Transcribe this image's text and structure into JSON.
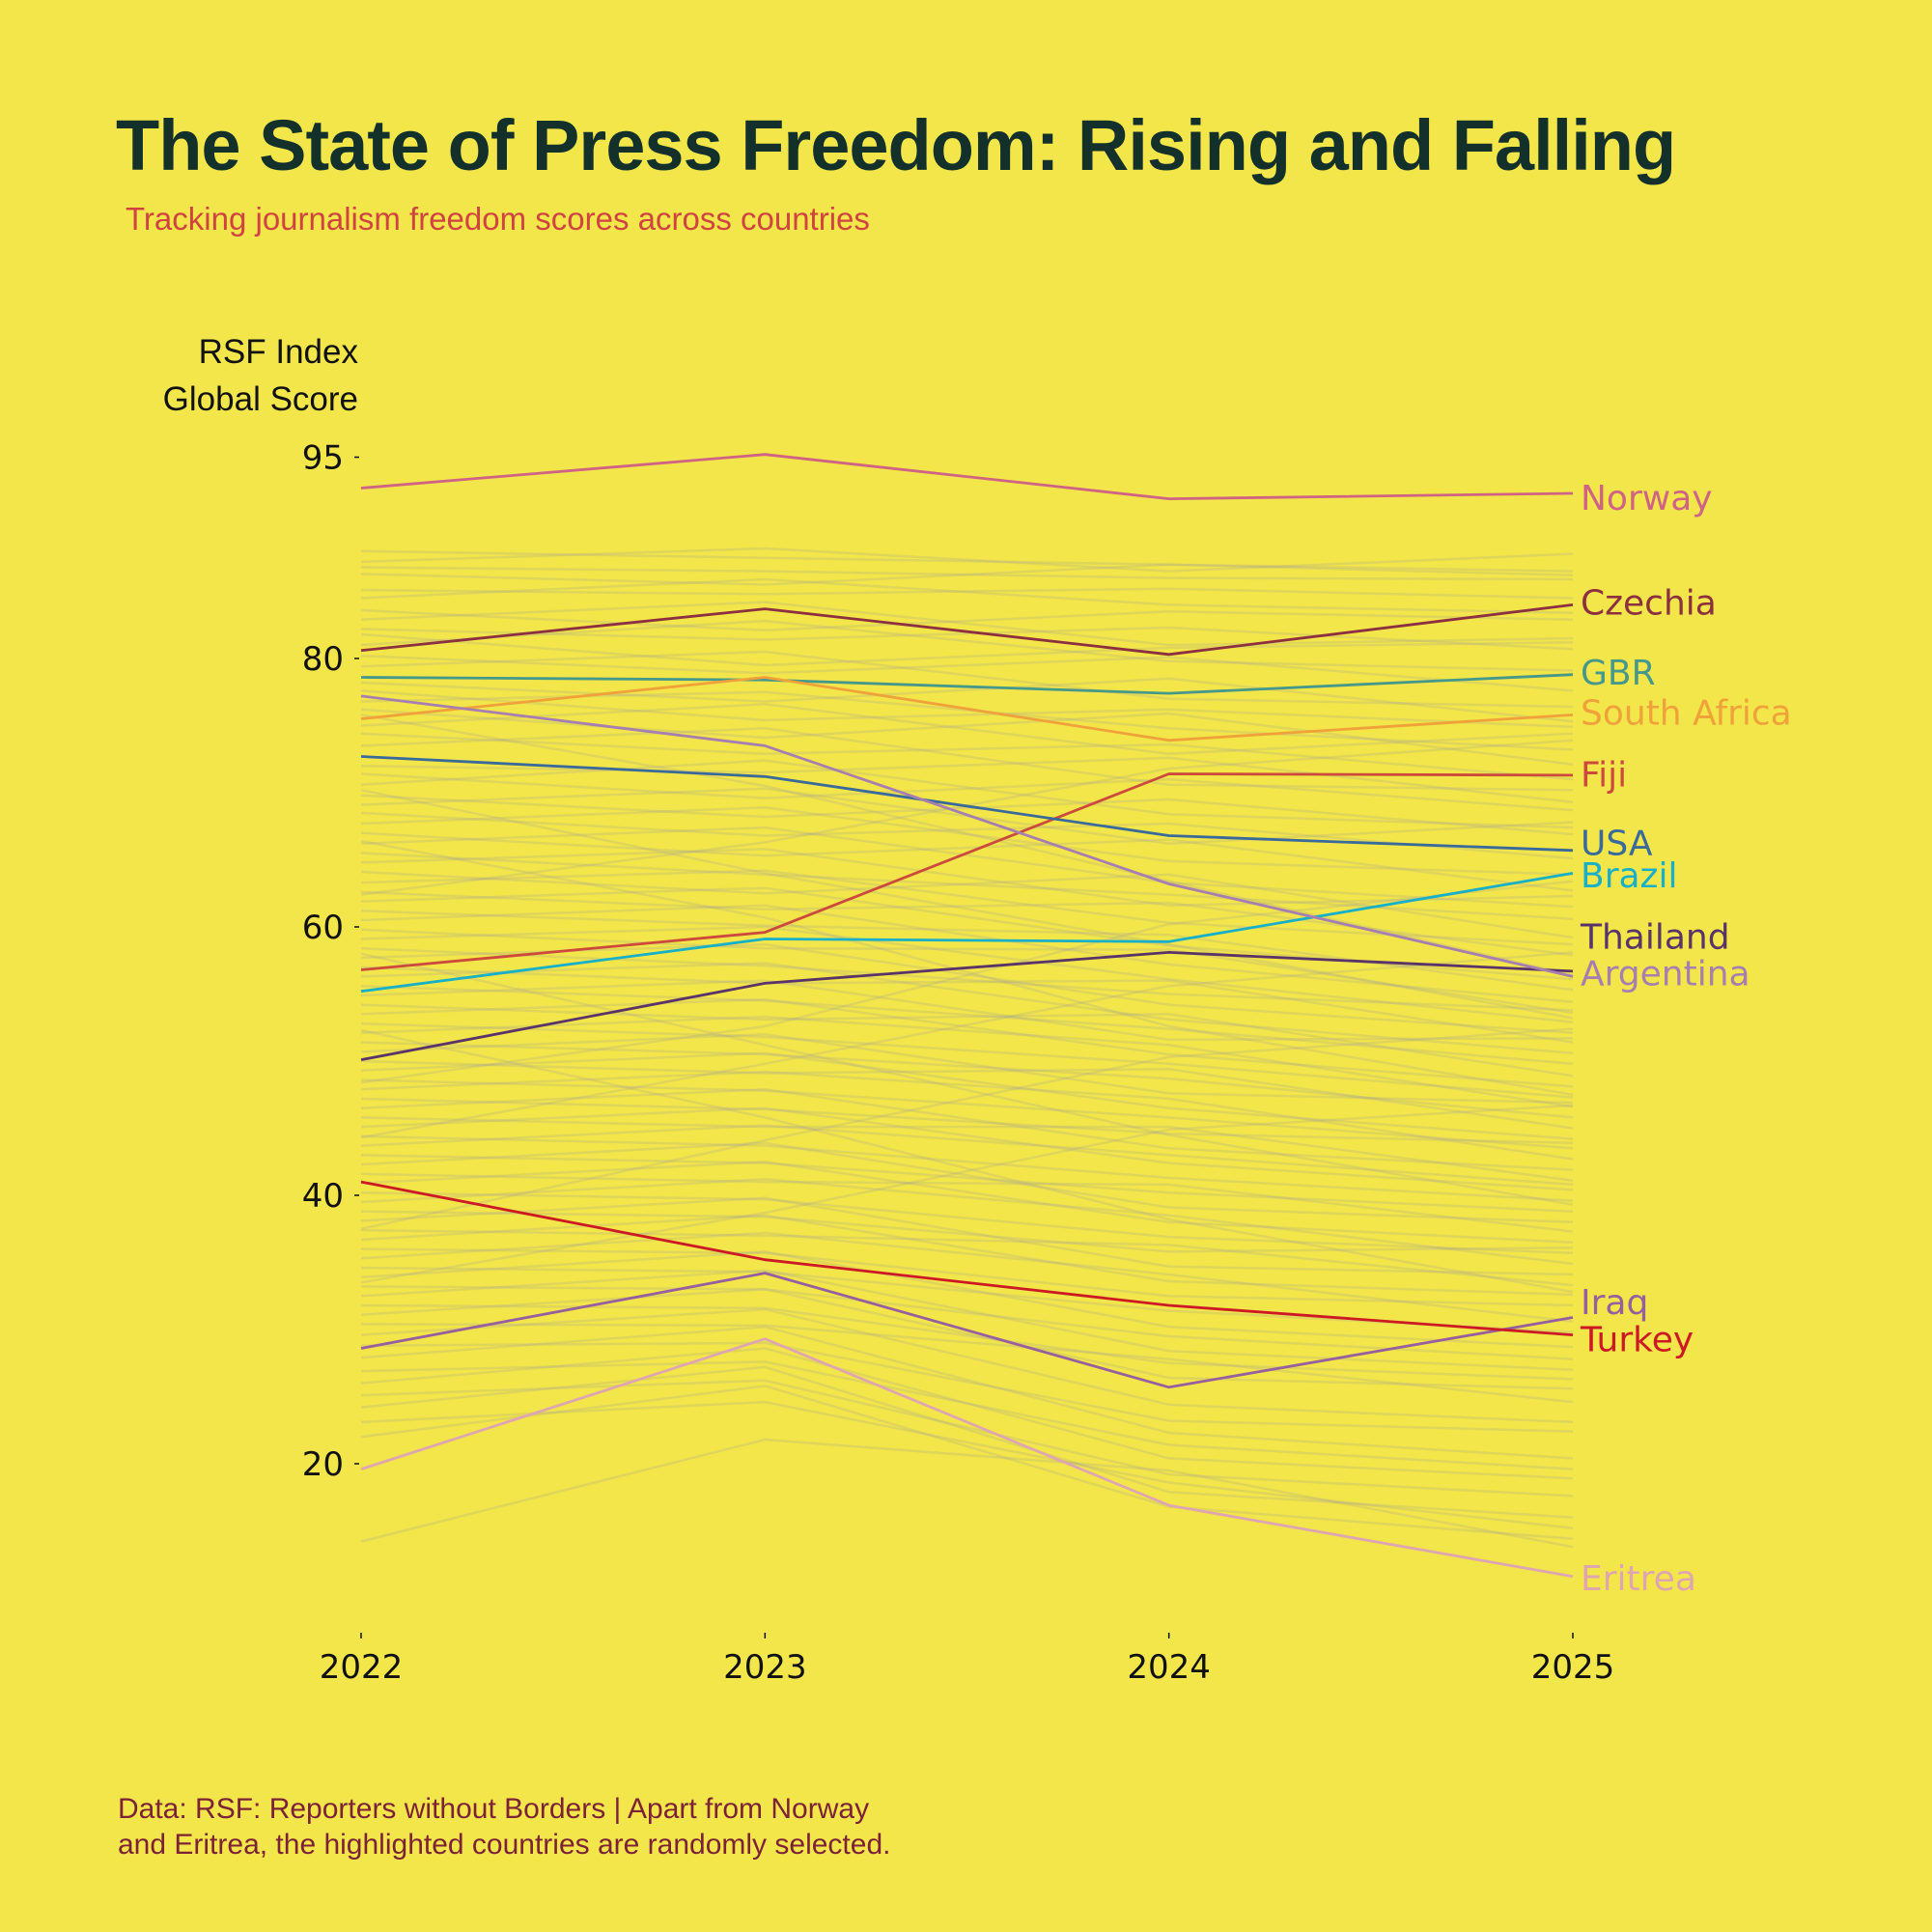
{
  "title": "The State of Press Freedom: Rising and Falling",
  "subtitle": "Tracking journalism freedom scores across countries",
  "caption_line1": "Data: RSF: Reporters without Borders | Apart from Norway",
  "caption_line2": "and Eritrea, the highlighted countries are randomly selected.",
  "colors": {
    "background": "#f3e64a",
    "title": "#14302b",
    "subtitle": "#cf4440",
    "caption": "#7c2237",
    "background_lines": "#9a9a9a"
  },
  "chart_data": {
    "type": "line",
    "title": "The State of Press Freedom: Rising and Falling",
    "ylabel_line1": "RSF Index",
    "ylabel_line2": "Global Score",
    "xlabel": "",
    "x": [
      "2022",
      "2023",
      "2024",
      "2025"
    ],
    "yticks": [
      20,
      40,
      60,
      80,
      95
    ],
    "ylim": [
      10,
      96
    ],
    "grid": false,
    "legend": "direct labels at right end of lines",
    "series": [
      {
        "name": "Norway",
        "color": "#cf6384",
        "values": [
          92.7,
          95.2,
          91.9,
          92.3
        ]
      },
      {
        "name": "Czechia",
        "color": "#8c3040",
        "values": [
          80.6,
          83.7,
          80.3,
          84.0
        ]
      },
      {
        "name": "GBR",
        "color": "#46998a",
        "values": [
          78.6,
          78.4,
          77.4,
          78.8
        ]
      },
      {
        "name": "South Africa",
        "color": "#f0a23a",
        "values": [
          75.5,
          78.6,
          73.9,
          75.8
        ]
      },
      {
        "name": "Fiji",
        "color": "#cc4a3c",
        "values": [
          56.8,
          59.6,
          71.4,
          71.3
        ]
      },
      {
        "name": "USA",
        "color": "#3a6a9a",
        "values": [
          72.7,
          71.2,
          66.8,
          65.7
        ]
      },
      {
        "name": "Brazil",
        "color": "#18b0c8",
        "values": [
          55.2,
          59.1,
          58.9,
          64.0
        ]
      },
      {
        "name": "Thailand",
        "color": "#5a3468",
        "values": [
          50.1,
          55.8,
          58.1,
          56.7
        ]
      },
      {
        "name": "Argentina",
        "color": "#a67fb0",
        "values": [
          77.2,
          73.5,
          63.2,
          56.3
        ]
      },
      {
        "name": "Iraq",
        "color": "#96609e",
        "values": [
          28.6,
          34.2,
          25.7,
          30.9
        ]
      },
      {
        "name": "Turkey",
        "color": "#cc1a24",
        "values": [
          41.0,
          35.2,
          31.8,
          29.6
        ]
      },
      {
        "name": "Eritrea",
        "color": "#dea6b0",
        "values": [
          19.6,
          29.3,
          16.9,
          11.6
        ]
      }
    ],
    "labels": [
      {
        "name": "Norway",
        "value": 92.0
      },
      {
        "name": "Czechia",
        "value": 84.2
      },
      {
        "name": "GBR",
        "value": 79.0
      },
      {
        "name": "South Africa",
        "value": 76.0
      },
      {
        "name": "Fiji",
        "value": 71.4
      },
      {
        "name": "USA",
        "value": 66.3
      },
      {
        "name": "Brazil",
        "value": 63.9
      },
      {
        "name": "Thailand",
        "value": 59.3
      },
      {
        "name": "Argentina",
        "value": 56.6
      },
      {
        "name": "Iraq",
        "value": 32.1
      },
      {
        "name": "Turkey",
        "value": 29.3
      },
      {
        "name": "Eritrea",
        "value": 11.5
      }
    ],
    "background_series": [
      [
        88.0,
        87.5,
        87.0,
        86.5
      ],
      [
        87.2,
        88.2,
        86.5,
        87.8
      ],
      [
        86.8,
        86.5,
        86.0,
        85.9
      ],
      [
        86.3,
        85.5,
        87.0,
        86.2
      ],
      [
        85.1,
        84.8,
        85.2,
        84.5
      ],
      [
        84.5,
        85.9,
        84.0,
        83.4
      ],
      [
        83.6,
        82.1,
        83.5,
        82.9
      ],
      [
        82.9,
        84.2,
        81.0,
        81.5
      ],
      [
        82.2,
        81.4,
        82.3,
        80.7
      ],
      [
        81.8,
        79.5,
        80.8,
        81.2
      ],
      [
        81.0,
        82.8,
        79.8,
        79.1
      ],
      [
        80.2,
        78.9,
        80.1,
        77.6
      ],
      [
        79.4,
        80.5,
        77.0,
        76.4
      ],
      [
        78.2,
        76.8,
        78.5,
        75.3
      ],
      [
        77.6,
        75.4,
        76.2,
        74.9
      ],
      [
        76.8,
        77.5,
        74.8,
        73.2
      ],
      [
        76.2,
        74.1,
        75.9,
        72.1
      ],
      [
        75.0,
        76.6,
        72.9,
        74.4
      ],
      [
        74.4,
        72.9,
        73.6,
        71.0
      ],
      [
        73.5,
        74.8,
        70.6,
        70.2
      ],
      [
        72.0,
        71.5,
        72.6,
        69.3
      ],
      [
        71.4,
        69.6,
        71.0,
        68.7
      ],
      [
        70.6,
        72.4,
        68.4,
        67.4
      ],
      [
        69.8,
        68.2,
        69.5,
        66.9
      ],
      [
        69.1,
        70.3,
        66.2,
        67.8
      ],
      [
        68.5,
        66.8,
        67.7,
        65.1
      ],
      [
        67.7,
        68.9,
        64.9,
        63.9
      ],
      [
        67.0,
        65.3,
        66.5,
        62.7
      ],
      [
        66.2,
        67.4,
        63.3,
        61.5
      ],
      [
        65.5,
        63.9,
        62.4,
        60.6
      ],
      [
        64.8,
        65.8,
        61.6,
        62.3
      ],
      [
        64.1,
        62.5,
        63.9,
        59.2
      ],
      [
        63.3,
        64.2,
        60.3,
        58.7
      ],
      [
        62.6,
        61.3,
        61.8,
        57.9
      ],
      [
        61.9,
        62.9,
        58.6,
        56.1
      ],
      [
        61.2,
        60.1,
        59.4,
        55.3
      ],
      [
        60.5,
        61.6,
        57.2,
        54.4
      ],
      [
        59.8,
        58.4,
        58.3,
        53.6
      ],
      [
        59.1,
        60.0,
        56.1,
        52.9
      ],
      [
        58.4,
        57.1,
        55.0,
        53.8
      ],
      [
        57.7,
        58.7,
        54.2,
        52.1
      ],
      [
        57.0,
        55.8,
        56.0,
        51.4
      ],
      [
        56.3,
        57.3,
        53.1,
        50.6
      ],
      [
        55.6,
        54.5,
        52.4,
        49.8
      ],
      [
        54.9,
        56.0,
        51.6,
        51.7
      ],
      [
        54.2,
        53.1,
        53.5,
        48.9
      ],
      [
        53.5,
        54.6,
        50.5,
        48.1
      ],
      [
        52.8,
        51.8,
        49.8,
        47.3
      ],
      [
        52.1,
        53.3,
        51.2,
        46.6
      ],
      [
        51.4,
        50.5,
        48.7,
        45.8
      ],
      [
        50.7,
        52.0,
        47.6,
        46.9
      ],
      [
        50.0,
        49.1,
        49.4,
        45.0
      ],
      [
        49.3,
        50.6,
        46.5,
        44.2
      ],
      [
        48.6,
        47.8,
        45.8,
        43.5
      ],
      [
        47.9,
        49.2,
        47.2,
        42.7
      ],
      [
        47.2,
        46.4,
        44.6,
        43.9
      ],
      [
        46.5,
        47.9,
        43.5,
        41.9
      ],
      [
        45.8,
        45.1,
        45.1,
        41.1
      ],
      [
        45.1,
        46.5,
        42.4,
        40.4
      ],
      [
        44.4,
        43.7,
        41.3,
        39.6
      ],
      [
        43.7,
        45.2,
        43.0,
        40.8
      ],
      [
        43.0,
        42.4,
        40.2,
        38.8
      ],
      [
        42.3,
        43.9,
        39.1,
        38.0
      ],
      [
        41.6,
        41.0,
        40.8,
        37.3
      ],
      [
        40.9,
        42.5,
        38.0,
        36.5
      ],
      [
        40.2,
        39.7,
        36.9,
        35.7
      ],
      [
        39.5,
        41.2,
        38.5,
        34.9
      ],
      [
        38.8,
        38.4,
        35.8,
        36.1
      ],
      [
        38.1,
        39.8,
        34.7,
        34.1
      ],
      [
        37.4,
        37.0,
        36.3,
        33.3
      ],
      [
        36.7,
        38.5,
        33.6,
        32.6
      ],
      [
        36.0,
        35.7,
        32.5,
        31.8
      ],
      [
        35.3,
        37.2,
        34.1,
        30.6
      ],
      [
        34.6,
        34.3,
        31.4,
        29.8
      ],
      [
        33.9,
        35.8,
        30.2,
        28.7
      ],
      [
        33.2,
        33.0,
        29.5,
        27.8
      ],
      [
        32.5,
        34.4,
        28.4,
        27.0
      ],
      [
        31.8,
        31.6,
        27.5,
        26.3
      ],
      [
        31.1,
        33.0,
        26.4,
        25.6
      ],
      [
        30.4,
        30.3,
        27.8,
        24.6
      ],
      [
        29.6,
        31.5,
        24.4,
        23.1
      ],
      [
        28.8,
        29.0,
        23.2,
        22.4
      ],
      [
        27.9,
        30.2,
        22.3,
        20.4
      ],
      [
        26.9,
        27.6,
        21.4,
        19.6
      ],
      [
        26.0,
        28.6,
        20.4,
        18.9
      ],
      [
        25.1,
        26.2,
        19.2,
        17.6
      ],
      [
        24.2,
        27.2,
        17.9,
        16.0
      ],
      [
        23.1,
        24.6,
        18.6,
        15.2
      ],
      [
        22.0,
        25.8,
        16.8,
        14.4
      ],
      [
        14.2,
        21.8,
        19.5,
        13.8
      ],
      [
        62.4,
        66.3,
        71.8,
        73.9
      ],
      [
        48.4,
        52.6,
        60.2,
        63.4
      ],
      [
        70.2,
        64.0,
        58.7,
        53.2
      ],
      [
        44.3,
        49.8,
        55.6,
        58.1
      ],
      [
        58.0,
        51.2,
        44.5,
        39.3
      ],
      [
        37.5,
        44.1,
        50.3,
        52.4
      ],
      [
        66.4,
        60.7,
        52.6,
        47.5
      ],
      [
        52.3,
        45.8,
        38.2,
        32.8
      ],
      [
        33.5,
        38.7,
        44.9,
        46.7
      ],
      [
        75.8,
        70.5,
        63.4,
        56.4
      ]
    ]
  }
}
